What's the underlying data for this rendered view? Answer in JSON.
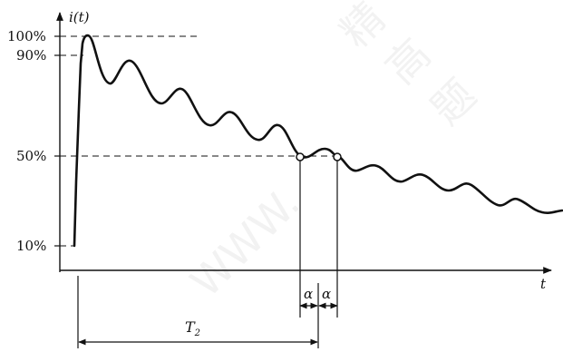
{
  "labels": {
    "y_axis": "i(t)",
    "x_axis": "t",
    "y_ticks": [
      "100%",
      "90%",
      "50%",
      "10%"
    ],
    "alpha_left": "α",
    "alpha_right": "α",
    "t2_main": "T",
    "t2_sub": "2"
  },
  "watermark": [
    "WWW.",
    "精",
    "高",
    "题"
  ]
}
